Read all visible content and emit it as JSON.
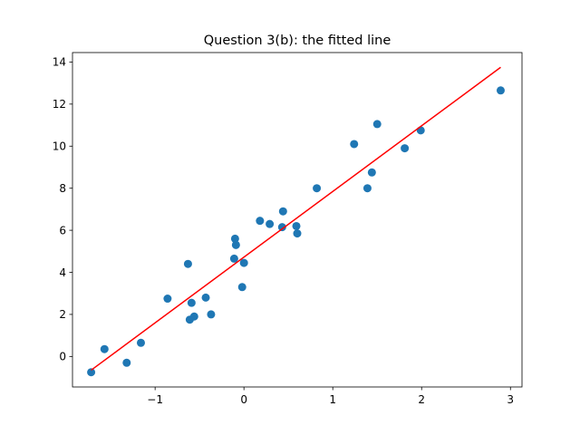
{
  "chart_data": {
    "type": "scatter",
    "title": "Question 3(b): the fitted line",
    "xlabel": "",
    "ylabel": "",
    "xlim": [
      -1.93,
      3.13
    ],
    "ylim": [
      -1.45,
      14.45
    ],
    "xticks": [
      -1,
      0,
      1,
      2,
      3
    ],
    "yticks": [
      0,
      2,
      4,
      6,
      8,
      10,
      12,
      14
    ],
    "grid": false,
    "points": [
      {
        "x": -1.72,
        "y": -0.75
      },
      {
        "x": -1.57,
        "y": 0.35
      },
      {
        "x": -1.32,
        "y": -0.3
      },
      {
        "x": -1.16,
        "y": 0.65
      },
      {
        "x": -0.86,
        "y": 2.75
      },
      {
        "x": -0.63,
        "y": 4.4
      },
      {
        "x": -0.61,
        "y": 1.75
      },
      {
        "x": -0.59,
        "y": 2.55
      },
      {
        "x": -0.56,
        "y": 1.9
      },
      {
        "x": -0.43,
        "y": 2.8
      },
      {
        "x": -0.37,
        "y": 2.0
      },
      {
        "x": -0.11,
        "y": 4.65
      },
      {
        "x": -0.1,
        "y": 5.6
      },
      {
        "x": -0.09,
        "y": 5.3
      },
      {
        "x": -0.02,
        "y": 3.3
      },
      {
        "x": 0.0,
        "y": 4.45
      },
      {
        "x": 0.18,
        "y": 6.45
      },
      {
        "x": 0.29,
        "y": 6.3
      },
      {
        "x": 0.43,
        "y": 6.15
      },
      {
        "x": 0.44,
        "y": 6.9
      },
      {
        "x": 0.59,
        "y": 6.2
      },
      {
        "x": 0.6,
        "y": 5.85
      },
      {
        "x": 0.82,
        "y": 8.0
      },
      {
        "x": 1.24,
        "y": 10.1
      },
      {
        "x": 1.39,
        "y": 8.0
      },
      {
        "x": 1.44,
        "y": 8.75
      },
      {
        "x": 1.5,
        "y": 11.05
      },
      {
        "x": 1.81,
        "y": 9.9
      },
      {
        "x": 1.99,
        "y": 10.75
      },
      {
        "x": 2.89,
        "y": 12.65
      }
    ],
    "fit_line": {
      "x": [
        -1.72,
        2.89
      ],
      "y": [
        -0.65,
        13.75
      ]
    },
    "point_color": "#1f77b4",
    "line_color": "#ff0000"
  }
}
